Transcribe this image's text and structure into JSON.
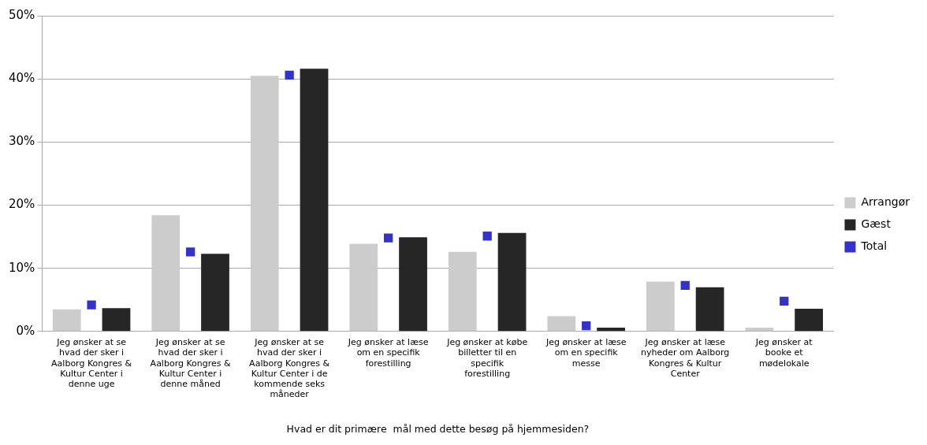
{
  "chart_data": {
    "type": "bar",
    "xlabel": "Hvad er dit primære  mål med dette besøg på hjemmesiden?",
    "categories": [
      "Jeg ønsker at se hvad der sker i Aalborg Kongres & Kultur Center i denne uge",
      "Jeg ønsker at se hvad der sker i Aalborg Kongres & Kultur Center i denne måned",
      "Jeg ønsker at se hvad der sker i Aalborg Kongres & Kultur Center i de kommende seks måneder",
      "Jeg ønsker at læse om en specifik forestilling",
      "Jeg ønsker at købe billetter til en specifik forestilling",
      "Jeg ønsker at læse om en specifik messe",
      "Jeg ønsker at læse nyheder om Aalborg Kongres & Kultur Center",
      "Jeg ønsker at booke et mødelokale"
    ],
    "series": [
      {
        "name": "Arrangør",
        "color": "#cccccc",
        "values": [
          3.5,
          18.4,
          40.5,
          13.9,
          12.6,
          2.4,
          7.9,
          0.6
        ]
      },
      {
        "name": "Gæst",
        "color": "#262626",
        "values": [
          3.7,
          12.3,
          41.6,
          14.9,
          15.6,
          0.6,
          7.0,
          3.6
        ]
      },
      {
        "name": "Total",
        "type": "scatter",
        "color": "#3333cc",
        "values": [
          4.2,
          12.6,
          40.6,
          14.8,
          15.1,
          0.9,
          7.3,
          4.8
        ]
      }
    ],
    "ylim": [
      0,
      50
    ],
    "yticks": [
      {
        "value": 0,
        "label": "0%"
      },
      {
        "value": 10,
        "label": "10%"
      },
      {
        "value": 20,
        "label": "20%"
      },
      {
        "value": 30,
        "label": "30%"
      },
      {
        "value": 40,
        "label": "40%"
      },
      {
        "value": 50,
        "label": "50%"
      }
    ],
    "grid": "y",
    "legend": "right",
    "marker": "square"
  }
}
